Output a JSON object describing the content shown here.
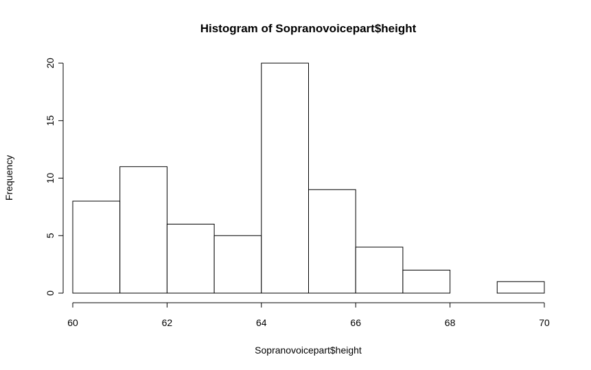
{
  "chart_data": {
    "type": "bar",
    "title": "Histogram of Sopranovoicepart$height",
    "xlabel": "Sopranovoicepart$height",
    "ylabel": "Frequency",
    "bins": [
      {
        "x0": 60,
        "x1": 61,
        "count": 8
      },
      {
        "x0": 61,
        "x1": 62,
        "count": 11
      },
      {
        "x0": 62,
        "x1": 63,
        "count": 6
      },
      {
        "x0": 63,
        "x1": 64,
        "count": 5
      },
      {
        "x0": 64,
        "x1": 65,
        "count": 20
      },
      {
        "x0": 65,
        "x1": 66,
        "count": 9
      },
      {
        "x0": 66,
        "x1": 67,
        "count": 4
      },
      {
        "x0": 67,
        "x1": 68,
        "count": 2
      },
      {
        "x0": 68,
        "x1": 69,
        "count": 0
      },
      {
        "x0": 69,
        "x1": 70,
        "count": 1
      }
    ],
    "xlim": [
      60,
      70
    ],
    "ylim": [
      0,
      20
    ],
    "xticks": [
      "60",
      "62",
      "64",
      "66",
      "68",
      "70"
    ],
    "yticks": [
      "0",
      "5",
      "10",
      "15",
      "20"
    ],
    "grid": false,
    "legend": "none",
    "bar_fill": "#ffffff",
    "bar_stroke": "#000000"
  }
}
